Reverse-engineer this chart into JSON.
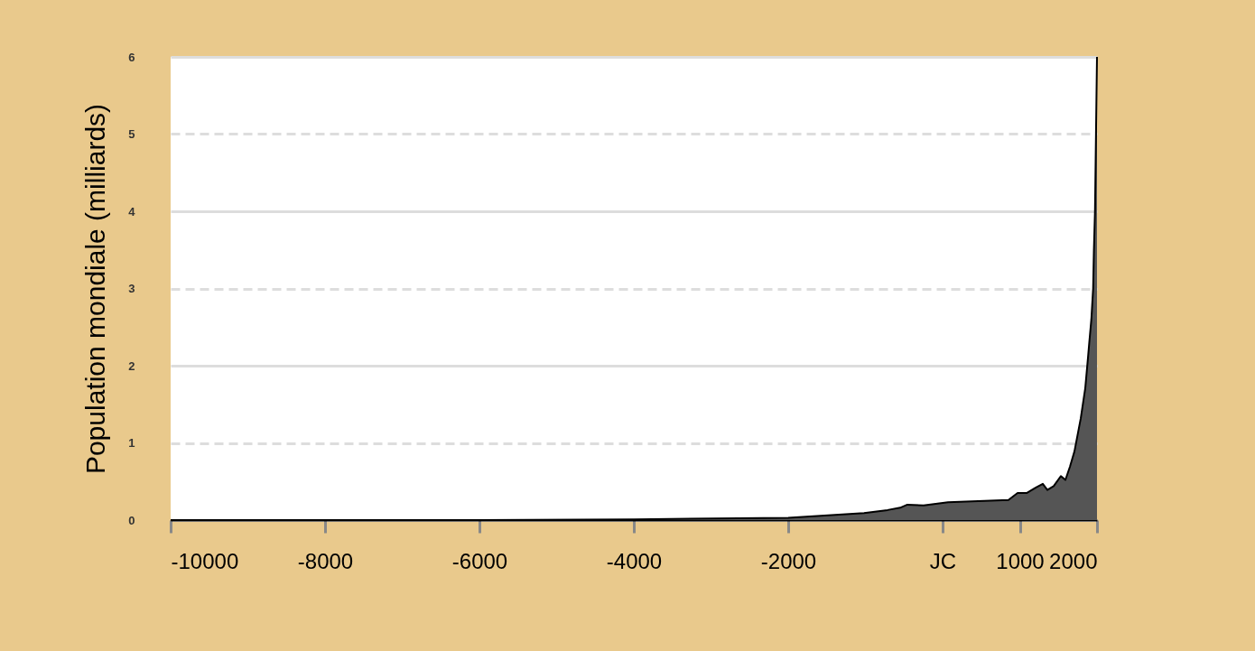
{
  "chart_data": {
    "type": "area",
    "ylabel": "Population mondiale (milliards)",
    "x": [
      -10000,
      -8000,
      -6000,
      -4000,
      -2000,
      -1018,
      -714,
      -550,
      -456,
      -246,
      70,
      853,
      971,
      1088,
      1205,
      1298,
      1357,
      1439,
      1532,
      1591,
      1649,
      1708,
      1790,
      1848,
      1883,
      1900,
      1927,
      1950,
      1960,
      1974,
      1987,
      2000
    ],
    "series": [
      {
        "color": "#555555",
        "values": [
          0,
          0,
          0,
          0.01,
          0.03,
          0.09,
          0.13,
          0.16,
          0.2,
          0.19,
          0.23,
          0.26,
          0.35,
          0.35,
          0.42,
          0.47,
          0.39,
          0.44,
          0.57,
          0.52,
          0.69,
          0.89,
          1.32,
          1.71,
          2.1,
          2.3,
          2.6,
          3.0,
          3.5,
          4.0,
          5.0,
          6.0
        ]
      }
    ],
    "xlim": [
      -10000,
      2000
    ],
    "xticks": [
      -10000,
      -8000,
      -6000,
      -4000,
      -2000,
      {
        "value": 0,
        "label": "JC"
      },
      1000,
      2000
    ],
    "ylim": [
      0,
      6
    ],
    "yticks": [
      0,
      1,
      2,
      3,
      4,
      5,
      6
    ],
    "grid": "y"
  }
}
